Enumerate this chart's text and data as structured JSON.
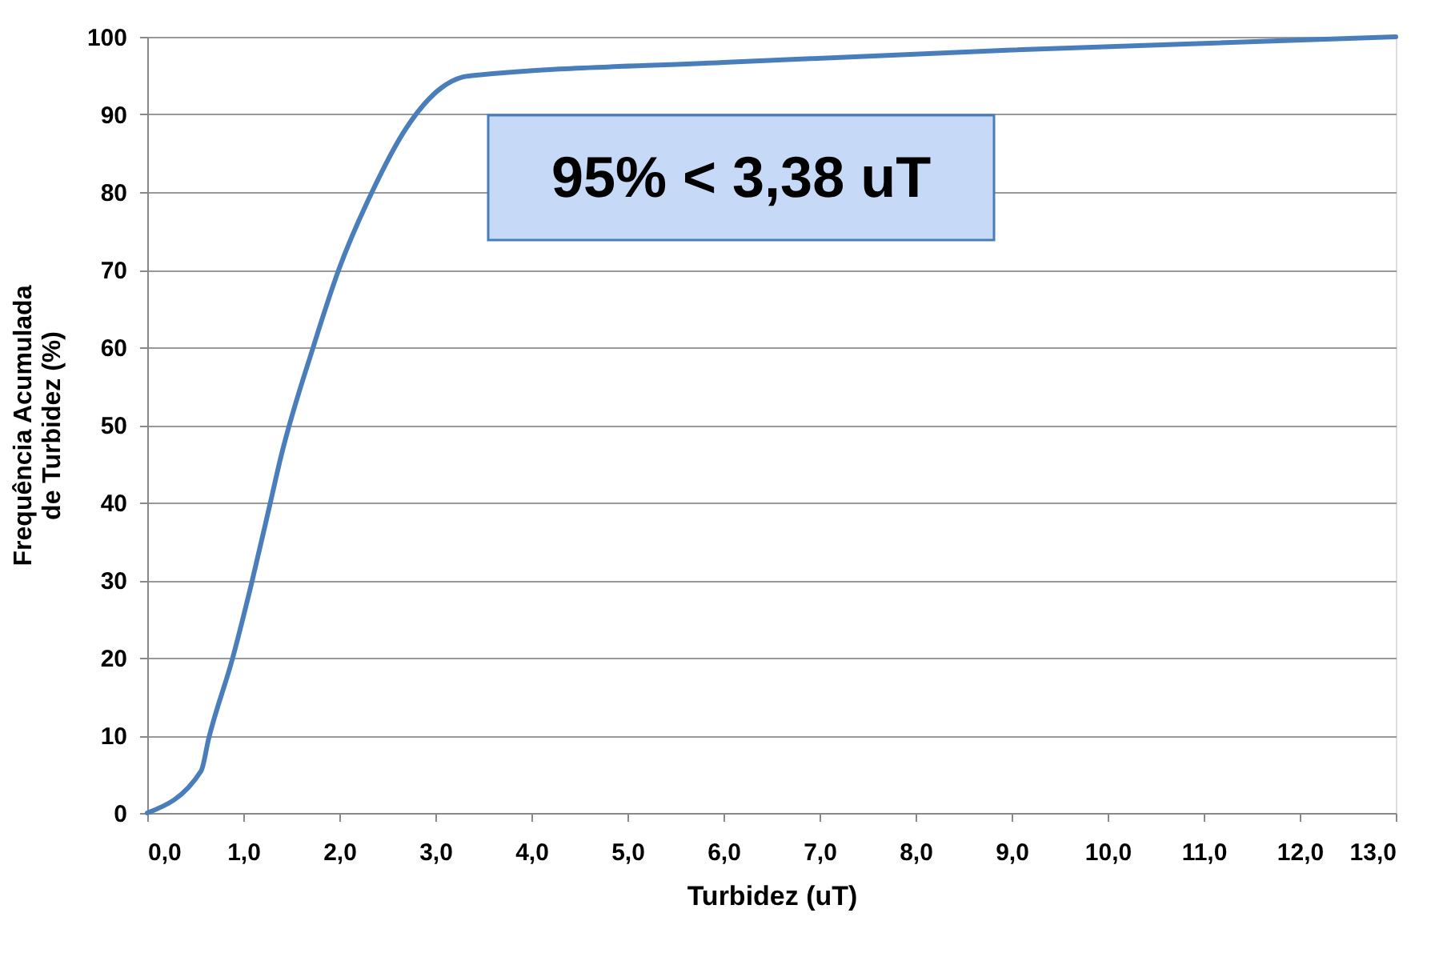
{
  "chart_data": {
    "type": "line",
    "xlabel": "Turbidez (uT)",
    "ylabel": "Frequência Acumulada\nde Turbidez (%)",
    "x": [
      0,
      0.56,
      0.64,
      0.89,
      1.09,
      1.28,
      1.39,
      1.73,
      2.0,
      2.34,
      2.7,
      3.06,
      3.28,
      3.38,
      6.0,
      9.0,
      13.0
    ],
    "series": [
      {
        "color": "#4a7ebb",
        "values": [
          0,
          5.4,
          9.6,
          20,
          29.8,
          39.9,
          45.8,
          60.1,
          70.2,
          80,
          88.3,
          93.4,
          94.8,
          95,
          96.7,
          98.3,
          100
        ]
      }
    ],
    "xlim": [
      0,
      13
    ],
    "ylim": [
      0,
      100
    ],
    "xticks": [
      {
        "value": 0,
        "label": "0,0"
      },
      {
        "value": 1,
        "label": "1,0"
      },
      {
        "value": 2,
        "label": "2,0"
      },
      {
        "value": 3,
        "label": "3,0"
      },
      {
        "value": 4,
        "label": "4,0"
      },
      {
        "value": 5,
        "label": "5,0"
      },
      {
        "value": 6,
        "label": "6,0"
      },
      {
        "value": 7,
        "label": "7,0"
      },
      {
        "value": 8,
        "label": "8,0"
      },
      {
        "value": 9,
        "label": "9,0"
      },
      {
        "value": 10,
        "label": "10,0"
      },
      {
        "value": 11,
        "label": "11,0"
      },
      {
        "value": 12,
        "label": "12,0"
      },
      {
        "value": 13,
        "label": "13,0"
      }
    ],
    "yticks": [
      0,
      10,
      20,
      30,
      40,
      50,
      60,
      70,
      80,
      90,
      100
    ],
    "grid": "y",
    "marker": "none",
    "line_style": "solid",
    "annotations": [
      "95% < 3,38 uT"
    ]
  }
}
